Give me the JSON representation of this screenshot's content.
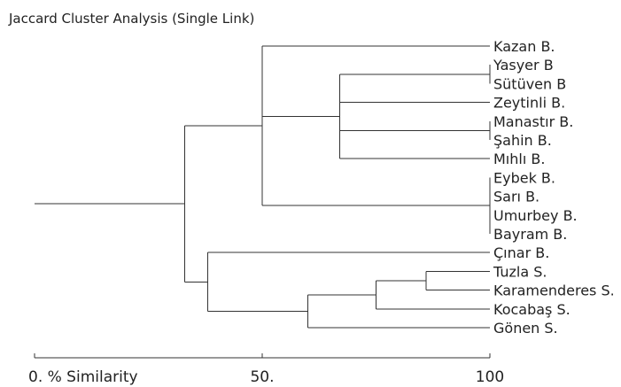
{
  "chart_data": {
    "type": "dendrogram",
    "title": "Jaccard Cluster Analysis (Single Link)",
    "xlabel": "",
    "x_axis": {
      "range": [
        0,
        100
      ],
      "ticks": [
        {
          "value": 0,
          "label": "0. % Similarity"
        },
        {
          "value": 50,
          "label": "50."
        },
        {
          "value": 100,
          "label": "100"
        }
      ]
    },
    "leaves": [
      "Kazan B.",
      "Yasyer B",
      "Sütüven B",
      "Zeytinli B.",
      "Manastır B.",
      "Şahin B.",
      "Mıhlı B.",
      "Eybek B.",
      "Sarı B.",
      "Umurbey B.",
      "Bayram B.",
      "Çınar B.",
      "Tuzla S.",
      "Karamenderes S.",
      "Kocabaş S.",
      "Gönen S."
    ],
    "merges": [
      {
        "members": [
          "Yasyer B",
          "Sütüven B"
        ],
        "similarity": 100
      },
      {
        "members": [
          "Manastır B.",
          "Şahin B."
        ],
        "similarity": 100
      },
      {
        "members": [
          "Eybek B.",
          "Sarı B.",
          "Umurbey B.",
          "Bayram B."
        ],
        "similarity": 100
      },
      {
        "members": [
          "Tuzla S.",
          "Karamenderes S."
        ],
        "similarity": 86
      },
      {
        "members": [
          "Tuzla S.+Karamenderes S.",
          "Kocabaş S."
        ],
        "similarity": 75
      },
      {
        "members": [
          "Yasyer B+Sütüven B",
          "Zeytinli B.",
          "Manastır B.+Şahin B.",
          "Mıhlı B."
        ],
        "similarity": 67
      },
      {
        "members": [
          "Tuzla S.+Karamenderes S.+Kocabaş S.",
          "Gönen S."
        ],
        "similarity": 60
      },
      {
        "members": [
          "Kazan B.",
          "Yasyer B…Mıhlı B.",
          "Eybek B.…Bayram B."
        ],
        "similarity": 50
      },
      {
        "members": [
          "Çınar B.",
          "Tuzla S.…Gönen S."
        ],
        "similarity": 38
      },
      {
        "members": [
          "Kazan B.…Bayram B.",
          "Çınar B.…Gönen S."
        ],
        "similarity": 33
      },
      {
        "members": [
          "all"
        ],
        "similarity": 0
      }
    ]
  }
}
